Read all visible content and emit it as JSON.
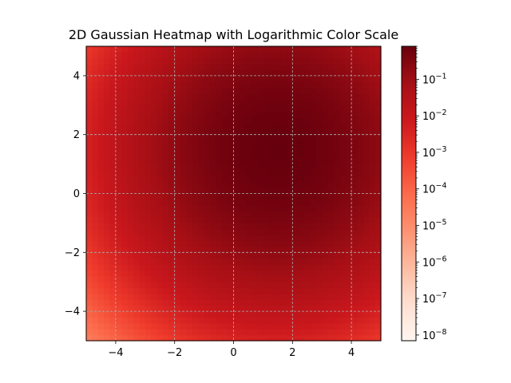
{
  "chart_data": {
    "type": "heatmap",
    "title": "2D Gaussian Heatmap with Logarithmic Color Scale",
    "xlabel": "",
    "ylabel": "",
    "xlim": [
      -5,
      5
    ],
    "ylim": [
      -5,
      5
    ],
    "x_ticks": [
      -4,
      -2,
      0,
      2,
      4
    ],
    "y_ticks": [
      -4,
      -2,
      0,
      2,
      4
    ],
    "x_tick_labels": [
      "−4",
      "−2",
      "0",
      "2",
      "4"
    ],
    "y_tick_labels": [
      "−4",
      "−2",
      "0",
      "2",
      "4"
    ],
    "grid": true,
    "colormap": "Reds",
    "color_scale": "log",
    "colorbar_range": [
      7e-09,
      0.8
    ],
    "colorbar_ticks": [
      {
        "base": "10",
        "exp": "−8",
        "value": 1e-08
      },
      {
        "base": "10",
        "exp": "−7",
        "value": 1e-07
      },
      {
        "base": "10",
        "exp": "−6",
        "value": 1e-06
      },
      {
        "base": "10",
        "exp": "−5",
        "value": 1e-05
      },
      {
        "base": "10",
        "exp": "−4",
        "value": 0.0001
      },
      {
        "base": "10",
        "exp": "−3",
        "value": 0.001
      },
      {
        "base": "10",
        "exp": "−2",
        "value": 0.01
      },
      {
        "base": "10",
        "exp": "−1",
        "value": 0.1
      }
    ],
    "field": {
      "function": "gaussian",
      "center": [
        1.5,
        1.5
      ],
      "sigma": 2.0,
      "peak": 0.8
    },
    "grid_resolution": 50
  }
}
